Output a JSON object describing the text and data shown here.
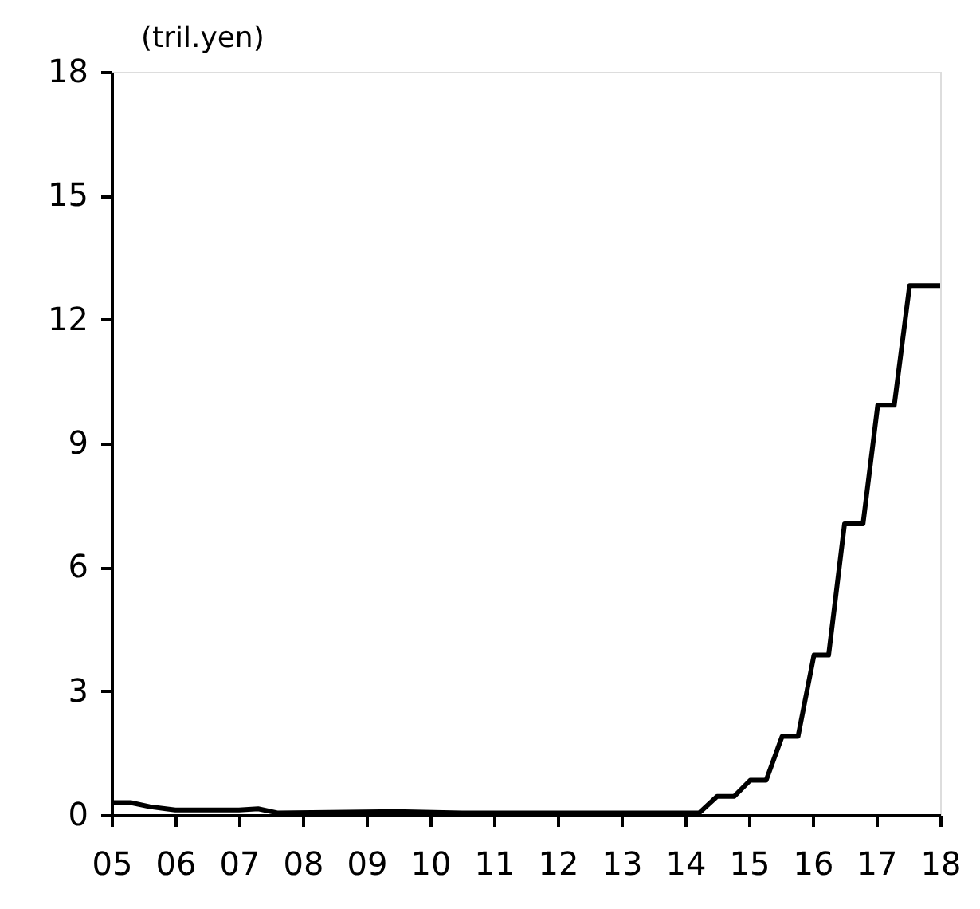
{
  "chart_data": {
    "type": "line",
    "ylabel": "(tril.yen)",
    "series": [
      {
        "color": "#000000",
        "x": [
          2005,
          2005.3,
          2005.6,
          2006,
          2007,
          2007.3,
          2007.6,
          2009.5,
          2010.5,
          2012,
          2014.22,
          2014.5,
          2014.77,
          2015.02,
          2015.27,
          2015.52,
          2015.77,
          2016.02,
          2016.25,
          2016.5,
          2016.79,
          2017.02,
          2017.28,
          2017.52,
          2018
        ],
        "values": [
          0.3,
          0.3,
          0.2,
          0.12,
          0.12,
          0.15,
          0.05,
          0.08,
          0.05,
          0.05,
          0.05,
          0.45,
          0.45,
          0.84,
          0.84,
          1.9,
          1.9,
          3.87,
          3.87,
          7.05,
          7.05,
          9.92,
          9.92,
          12.82,
          12.82
        ]
      }
    ],
    "xlim": [
      2005,
      2018
    ],
    "xticks": [
      {
        "value": 2005,
        "label": "05"
      },
      {
        "value": 2006,
        "label": "06"
      },
      {
        "value": 2007,
        "label": "07"
      },
      {
        "value": 2008,
        "label": "08"
      },
      {
        "value": 2009,
        "label": "09"
      },
      {
        "value": 2010,
        "label": "10"
      },
      {
        "value": 2011,
        "label": "11"
      },
      {
        "value": 2012,
        "label": "12"
      },
      {
        "value": 2013,
        "label": "13"
      },
      {
        "value": 2014,
        "label": "14"
      },
      {
        "value": 2015,
        "label": "15"
      },
      {
        "value": 2016,
        "label": "16"
      },
      {
        "value": 2017,
        "label": "17"
      },
      {
        "value": 2018,
        "label": "18"
      }
    ],
    "ylim": [
      0,
      18
    ],
    "yticks": [
      0,
      3,
      6,
      9,
      12,
      15,
      18
    ],
    "grid": false,
    "legend": false,
    "marker": "none",
    "line_style": "solid"
  }
}
